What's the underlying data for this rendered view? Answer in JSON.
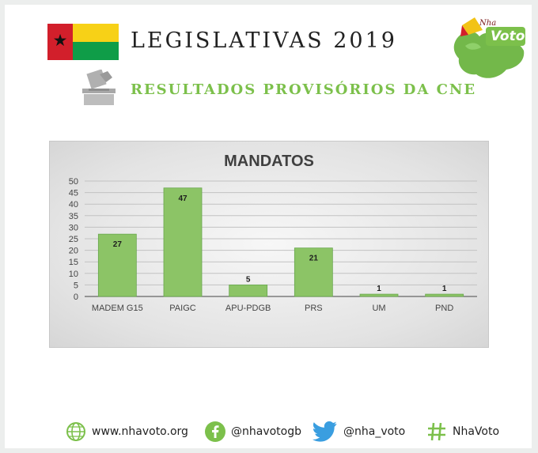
{
  "header": {
    "title": "LEGISLATIVAS 2019",
    "subtitle": "RESULTADOS PROVISÓRIOS DA CNE",
    "logo_text": "Voto",
    "logo_small": "Nha"
  },
  "colors": {
    "flag_red": "#d21f2b",
    "flag_yellow": "#f7d117",
    "flag_green": "#0f9d48",
    "accent_green": "#7cc04b",
    "bar_fill": "#8cc466",
    "bar_stroke": "#6aa84f",
    "twitter_blue": "#3a9ee0"
  },
  "chart_data": {
    "type": "bar",
    "title": "MANDATOS",
    "categories": [
      "MADEM G15",
      "PAIGC",
      "APU-PDGB",
      "PRS",
      "UM",
      "PND"
    ],
    "values": [
      27,
      47,
      5,
      21,
      1,
      1
    ],
    "ylim": [
      0,
      50
    ],
    "yticks": [
      0,
      5,
      10,
      15,
      20,
      25,
      30,
      35,
      40,
      45,
      50
    ],
    "grid": true,
    "data_labels": true
  },
  "footer": {
    "website": "www.nhavoto.org",
    "facebook": "@nhavotogb",
    "twitter": "@nha_voto",
    "hashtag": "NhaVoto"
  }
}
